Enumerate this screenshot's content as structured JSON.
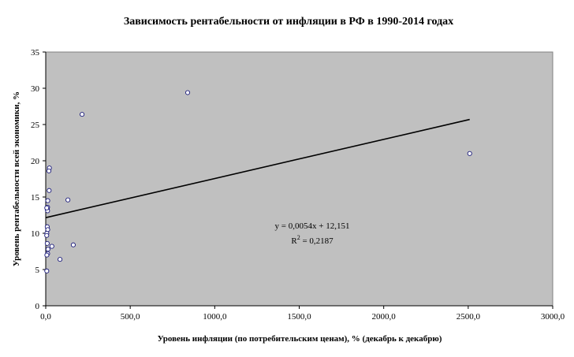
{
  "chart_data": {
    "type": "scatter",
    "title": "Зависимость рентабельности от инфляции в РФ в 1990-2014 годах",
    "xlabel": "Уровень инфляции (по потребительским ценам), % (декабрь к декабрю)",
    "ylabel": "Уровень рентабельности всей экономики, %",
    "xlim": [
      0,
      3000
    ],
    "ylim": [
      0,
      35
    ],
    "xticks": [
      "0,0",
      "500,0",
      "1000,0",
      "1500,0",
      "2000,0",
      "2500,0",
      "3000,0"
    ],
    "yticks": [
      "0",
      "5",
      "10",
      "15",
      "20",
      "25",
      "30",
      "35"
    ],
    "grid": false,
    "plot_background": "#c0c0c0",
    "marker_fill": "#ffffff",
    "marker_stroke": "#1a1a7a",
    "trendline_color": "#000000",
    "trendline": {
      "slope": 0.0054,
      "intercept": 12.151,
      "x_range": [
        0,
        2508.8
      ],
      "equation_label": "y = 0,0054x + 12,151",
      "r2_label_prefix": "R",
      "r2_label_power": "2",
      "r2_label_value": " = 0,2187"
    },
    "points": [
      {
        "x": 2508.8,
        "y": 21.0
      },
      {
        "x": 839.9,
        "y": 29.4
      },
      {
        "x": 215.1,
        "y": 26.4
      },
      {
        "x": 131.3,
        "y": 14.6
      },
      {
        "x": 21.8,
        "y": 19.0
      },
      {
        "x": 18.7,
        "y": 18.6
      },
      {
        "x": 20.2,
        "y": 15.9
      },
      {
        "x": 12.0,
        "y": 14.5
      },
      {
        "x": 11.0,
        "y": 13.6
      },
      {
        "x": 9.0,
        "y": 13.3
      },
      {
        "x": 10.9,
        "y": 13.1
      },
      {
        "x": 6.1,
        "y": 13.5
      },
      {
        "x": 8.8,
        "y": 10.9
      },
      {
        "x": 11.9,
        "y": 10.5
      },
      {
        "x": 6.5,
        "y": 10.0
      },
      {
        "x": 5.8,
        "y": 9.7
      },
      {
        "x": 8.8,
        "y": 8.6
      },
      {
        "x": 13.3,
        "y": 7.8
      },
      {
        "x": 11.4,
        "y": 7.2
      },
      {
        "x": 6.6,
        "y": 7.0
      },
      {
        "x": 36.5,
        "y": 8.2
      },
      {
        "x": 84.4,
        "y": 6.4
      },
      {
        "x": 163.0,
        "y": 8.4
      },
      {
        "x": 6.1,
        "y": 4.8
      }
    ]
  }
}
